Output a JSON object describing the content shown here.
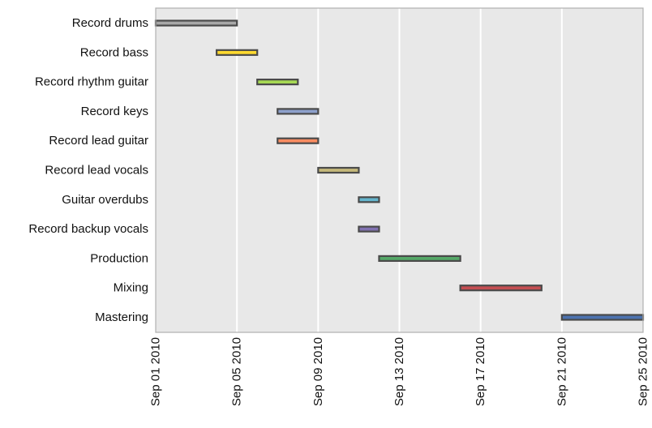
{
  "chart_data": {
    "type": "gantt",
    "title": "",
    "xlabel": "",
    "ylabel": "",
    "x_axis": {
      "type": "date",
      "min": "2010-09-01",
      "max": "2010-09-25",
      "ticks": [
        "2010-09-01",
        "2010-09-05",
        "2010-09-09",
        "2010-09-13",
        "2010-09-17",
        "2010-09-21",
        "2010-09-25"
      ],
      "tick_labels": [
        "Sep 01 2010",
        "Sep 05 2010",
        "Sep 09 2010",
        "Sep 13 2010",
        "Sep 17 2010",
        "Sep 21 2010",
        "Sep 25 2010"
      ],
      "tick_label_rotation": "vertical"
    },
    "grid": "vertical",
    "background_color": "#e8e8e8",
    "bar_edge_color": "#4a4a4a",
    "tasks": [
      {
        "label": "Record drums",
        "start": "2010-09-01",
        "end": "2010-09-05",
        "color": "#a8a8a8"
      },
      {
        "label": "Record bass",
        "start": "2010-09-04",
        "end": "2010-09-06",
        "color": "#ffd92f"
      },
      {
        "label": "Record rhythm guitar",
        "start": "2010-09-06",
        "end": "2010-09-08",
        "color": "#a6d854"
      },
      {
        "label": "Record keys",
        "start": "2010-09-07",
        "end": "2010-09-09",
        "color": "#8da0cb"
      },
      {
        "label": "Record lead guitar",
        "start": "2010-09-07",
        "end": "2010-09-09",
        "color": "#fc8d62"
      },
      {
        "label": "Record lead vocals",
        "start": "2010-09-09",
        "end": "2010-09-11",
        "color": "#c4b87a"
      },
      {
        "label": "Guitar overdubs",
        "start": "2010-09-11",
        "end": "2010-09-12",
        "color": "#64b5cd"
      },
      {
        "label": "Record backup vocals",
        "start": "2010-09-11",
        "end": "2010-09-12",
        "color": "#8172b2"
      },
      {
        "label": "Production",
        "start": "2010-09-12",
        "end": "2010-09-16",
        "color": "#55a868"
      },
      {
        "label": "Mixing",
        "start": "2010-09-16",
        "end": "2010-09-20",
        "color": "#c44e52"
      },
      {
        "label": "Mastering",
        "start": "2010-09-21",
        "end": "2010-09-25",
        "color": "#4c72b0"
      }
    ]
  }
}
